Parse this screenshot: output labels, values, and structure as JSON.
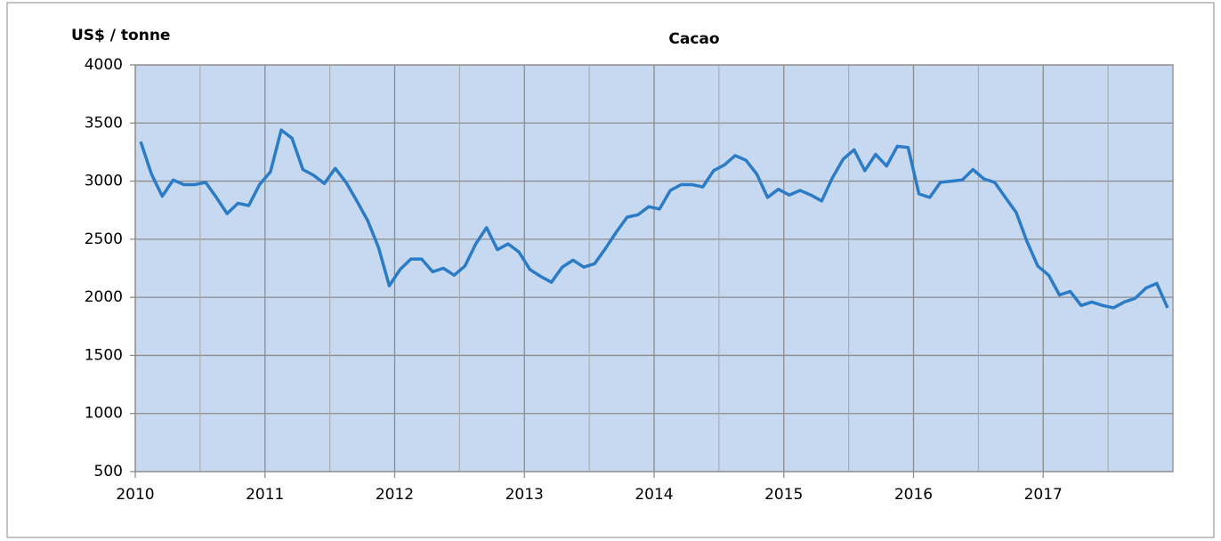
{
  "chart_data": {
    "type": "line",
    "title": "Cacao",
    "y_label": "US$ / tonne",
    "x": [
      2010.042,
      2010.125,
      2010.208,
      2010.292,
      2010.375,
      2010.458,
      2010.542,
      2010.625,
      2010.708,
      2010.792,
      2010.875,
      2010.958,
      2011.042,
      2011.125,
      2011.208,
      2011.292,
      2011.375,
      2011.458,
      2011.542,
      2011.625,
      2011.708,
      2011.792,
      2011.875,
      2011.958,
      2012.042,
      2012.125,
      2012.208,
      2012.292,
      2012.375,
      2012.458,
      2012.542,
      2012.625,
      2012.708,
      2012.792,
      2012.875,
      2012.958,
      2013.042,
      2013.125,
      2013.208,
      2013.292,
      2013.375,
      2013.458,
      2013.542,
      2013.625,
      2013.708,
      2013.792,
      2013.875,
      2013.958,
      2014.042,
      2014.125,
      2014.208,
      2014.292,
      2014.375,
      2014.458,
      2014.542,
      2014.625,
      2014.708,
      2014.792,
      2014.875,
      2014.958,
      2015.042,
      2015.125,
      2015.208,
      2015.292,
      2015.375,
      2015.458,
      2015.542,
      2015.625,
      2015.708,
      2015.792,
      2015.875,
      2015.958,
      2016.042,
      2016.125,
      2016.208,
      2016.292,
      2016.375,
      2016.458,
      2016.542,
      2016.625,
      2016.708,
      2016.792,
      2016.875,
      2016.958,
      2017.042,
      2017.125,
      2017.208,
      2017.292,
      2017.375,
      2017.458,
      2017.542,
      2017.625,
      2017.708,
      2017.792,
      2017.875,
      2017.958
    ],
    "values": [
      3340,
      3060,
      2870,
      3010,
      2970,
      2970,
      2990,
      2860,
      2720,
      2810,
      2790,
      2970,
      3080,
      3440,
      3370,
      3100,
      3050,
      2980,
      3110,
      2990,
      2830,
      2660,
      2430,
      2100,
      2240,
      2330,
      2330,
      2220,
      2250,
      2190,
      2270,
      2460,
      2600,
      2410,
      2460,
      2390,
      2240,
      2180,
      2130,
      2260,
      2320,
      2260,
      2290,
      2420,
      2560,
      2690,
      2710,
      2780,
      2760,
      2920,
      2970,
      2970,
      2950,
      3090,
      3140,
      3220,
      3180,
      3060,
      2860,
      2930,
      2880,
      2920,
      2880,
      2830,
      3030,
      3190,
      3270,
      3090,
      3230,
      3130,
      3300,
      3290,
      2890,
      2860,
      2990,
      3000,
      3010,
      3100,
      3020,
      2990,
      2860,
      2730,
      2480,
      2270,
      2190,
      2020,
      2050,
      1930,
      1960,
      1930,
      1910,
      1960,
      1990,
      2080,
      2120,
      1910
    ],
    "color": "#2b7bc6",
    "xlim": [
      2010,
      2018
    ],
    "xticks": [
      2010,
      2011,
      2012,
      2013,
      2014,
      2015,
      2016,
      2017
    ],
    "xminorticks": [
      2010.5,
      2011.5,
      2012.5,
      2013.5,
      2014.5,
      2015.5,
      2016.5,
      2017.5
    ],
    "ylim": [
      500,
      4000
    ],
    "yticks": [
      500,
      1000,
      1500,
      2000,
      2500,
      3000,
      3500,
      4000
    ],
    "grid": true
  }
}
